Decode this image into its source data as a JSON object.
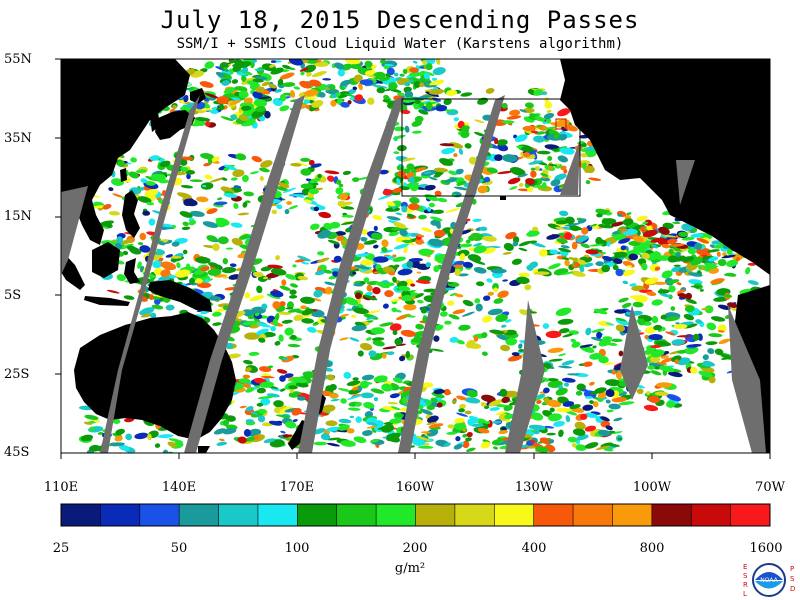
{
  "title": "July 18, 2015  Descending Passes",
  "subtitle": "SSM/I + SSMIS Cloud Liquid Water (Karstens algorithm)",
  "y_axis_labels": [
    "55N",
    "35N",
    "15N",
    "5S",
    "25S",
    "45S"
  ],
  "x_axis_labels": [
    "110E",
    "140E",
    "170E",
    "160W",
    "130W",
    "100W",
    "70W"
  ],
  "colorbar": {
    "colors": [
      "#0a1a7a",
      "#0a2ab8",
      "#1a52e8",
      "#1a9a9a",
      "#1ac8c8",
      "#1ae8f0",
      "#0a9a0a",
      "#1ac81a",
      "#22e82a",
      "#b8b00a",
      "#d8d81a",
      "#f8f81a",
      "#f8580a",
      "#f8780a",
      "#f89a0a",
      "#8a0a0a",
      "#c80a0a",
      "#f81a1a"
    ],
    "tick_labels": [
      "25",
      "50",
      "100",
      "200",
      "400",
      "800",
      "1600"
    ],
    "unit": "g/m²"
  },
  "map": {
    "land_color": "#000000",
    "no_data_color": "#6e6e6e",
    "background_color": "#ffffff"
  },
  "logo": {
    "left_letters": [
      "E",
      "S",
      "R",
      "L"
    ],
    "right_letters": [
      "P",
      "S",
      "D"
    ],
    "center_text": "NOAA"
  }
}
